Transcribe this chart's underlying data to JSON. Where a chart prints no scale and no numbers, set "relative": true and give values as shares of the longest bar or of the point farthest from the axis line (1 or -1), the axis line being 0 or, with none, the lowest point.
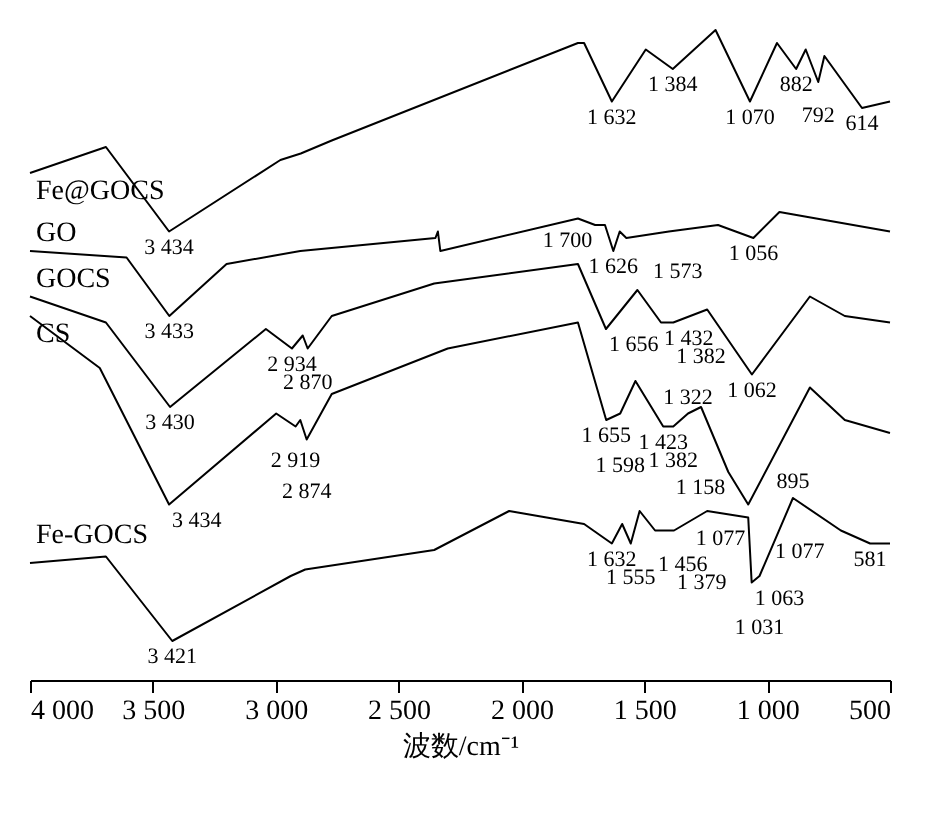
{
  "chart_data": {
    "type": "line",
    "relative": true,
    "xlabel": "波数/cm⁻¹",
    "xlim": [
      4000,
      500
    ],
    "xticks": [
      {
        "value": 4000,
        "label": "4 000"
      },
      {
        "value": 3500,
        "label": "3 500"
      },
      {
        "value": 3000,
        "label": "3 000"
      },
      {
        "value": 2500,
        "label": "2 500"
      },
      {
        "value": 2000,
        "label": "2 000"
      },
      {
        "value": 1500,
        "label": "1 500"
      },
      {
        "value": 1000,
        "label": "1 000"
      },
      {
        "value": 500,
        "label": "500"
      }
    ],
    "legend": false,
    "grid": false,
    "marker": "none",
    "line_style": "solid",
    "series": [
      {
        "name": "Fe@GOCS",
        "color": "#000000",
        "x": [
          4000,
          3691,
          3434,
          2981,
          2898,
          2772,
          1770,
          1745,
          1632,
          1494,
          1384,
          1210,
          1070,
          960,
          882,
          843,
          792,
          767,
          614,
          500
        ],
        "values": [
          0.78,
          0.82,
          0.69,
          0.8,
          0.81,
          0.83,
          0.98,
          0.98,
          0.89,
          0.97,
          0.94,
          1.0,
          0.89,
          0.98,
          0.94,
          0.97,
          0.92,
          0.96,
          0.88,
          0.89
        ]
      },
      {
        "name": "GO",
        "color": "#000000",
        "x": [
          4000,
          3607,
          3433,
          3200,
          2900,
          2350,
          2340,
          2330,
          1770,
          1700,
          1660,
          1626,
          1600,
          1573,
          1400,
          1200,
          1056,
          950,
          800,
          500
        ],
        "values": [
          0.66,
          0.65,
          0.56,
          0.64,
          0.66,
          0.68,
          0.69,
          0.66,
          0.71,
          0.7,
          0.7,
          0.66,
          0.69,
          0.68,
          0.69,
          0.7,
          0.68,
          0.72,
          0.71,
          0.69
        ]
      },
      {
        "name": "GOCS",
        "color": "#000000",
        "x": [
          4000,
          3691,
          3430,
          3040,
          2934,
          2890,
          2870,
          2772,
          2355,
          1770,
          1656,
          1528,
          1432,
          1382,
          1244,
          1062,
          826,
          684,
          500
        ],
        "values": [
          0.59,
          0.55,
          0.42,
          0.54,
          0.51,
          0.53,
          0.51,
          0.56,
          0.61,
          0.64,
          0.54,
          0.6,
          0.55,
          0.55,
          0.57,
          0.47,
          0.59,
          0.56,
          0.55
        ]
      },
      {
        "name": "CS",
        "color": "#000000",
        "x": [
          4000,
          3716,
          3434,
          2998,
          2919,
          2900,
          2874,
          2772,
          2300,
          1770,
          1655,
          1598,
          1536,
          1423,
          1382,
          1322,
          1269,
          1158,
          1077,
          826,
          684,
          500
        ],
        "values": [
          0.56,
          0.48,
          0.27,
          0.41,
          0.39,
          0.4,
          0.37,
          0.44,
          0.51,
          0.55,
          0.4,
          0.41,
          0.46,
          0.39,
          0.39,
          0.41,
          0.42,
          0.32,
          0.27,
          0.45,
          0.4,
          0.38
        ]
      },
      {
        "name": "Fe-GOCS",
        "color": "#000000",
        "x": [
          4000,
          3691,
          3421,
          2939,
          2880,
          2355,
          2050,
          1745,
          1632,
          1590,
          1555,
          1519,
          1456,
          1379,
          1244,
          1077,
          1063,
          1031,
          895,
          700,
          581,
          500
        ],
        "values": [
          0.18,
          0.19,
          0.06,
          0.16,
          0.17,
          0.2,
          0.26,
          0.24,
          0.21,
          0.24,
          0.21,
          0.26,
          0.23,
          0.23,
          0.26,
          0.25,
          0.15,
          0.16,
          0.28,
          0.23,
          0.21,
          0.21
        ]
      }
    ],
    "annotations": [
      {
        "text": "3 434",
        "x": 3434,
        "y": 0.69
      },
      {
        "text": "1 632",
        "x": 1632,
        "y": 0.89
      },
      {
        "text": "1 384",
        "x": 1384,
        "y": 0.94
      },
      {
        "text": "882",
        "x": 882,
        "y": 0.94
      },
      {
        "text": "1 070",
        "x": 1070,
        "y": 0.89
      },
      {
        "text": "792",
        "x": 792,
        "y": 0.92
      },
      {
        "text": "614",
        "x": 614,
        "y": 0.88
      },
      {
        "text": "3 433",
        "x": 3433,
        "y": 0.56
      },
      {
        "text": "1 700",
        "x": 1700,
        "y": 0.7
      },
      {
        "text": "1 626",
        "x": 1626,
        "y": 0.66
      },
      {
        "text": "1 573",
        "x": 1573,
        "y": 0.68
      },
      {
        "text": "1 056",
        "x": 1056,
        "y": 0.68
      },
      {
        "text": "3 430",
        "x": 3430,
        "y": 0.42
      },
      {
        "text": "2 934",
        "x": 2934,
        "y": 0.51
      },
      {
        "text": "2 870",
        "x": 2870,
        "y": 0.51
      },
      {
        "text": "1 656",
        "x": 1656,
        "y": 0.54
      },
      {
        "text": "1 432",
        "x": 1432,
        "y": 0.55
      },
      {
        "text": "1 382",
        "x": 1382,
        "y": 0.55
      },
      {
        "text": "1 062",
        "x": 1062,
        "y": 0.47
      },
      {
        "text": "3 434",
        "x": 3434,
        "y": 0.27
      },
      {
        "text": "2 919",
        "x": 2919,
        "y": 0.39
      },
      {
        "text": "2 874",
        "x": 2874,
        "y": 0.37
      },
      {
        "text": "1 655",
        "x": 1655,
        "y": 0.4
      },
      {
        "text": "1 598",
        "x": 1598,
        "y": 0.41
      },
      {
        "text": "1 423",
        "x": 1423,
        "y": 0.39
      },
      {
        "text": "1 382",
        "x": 1382,
        "y": 0.39
      },
      {
        "text": "1 322",
        "x": 1322,
        "y": 0.41
      },
      {
        "text": "1 158",
        "x": 1158,
        "y": 0.32
      },
      {
        "text": "1 077",
        "x": 1077,
        "y": 0.27
      },
      {
        "text": "3 421",
        "x": 3421,
        "y": 0.06
      },
      {
        "text": "1 632",
        "x": 1632,
        "y": 0.21
      },
      {
        "text": "1 555",
        "x": 1555,
        "y": 0.21
      },
      {
        "text": "1 456",
        "x": 1456,
        "y": 0.23
      },
      {
        "text": "1 379",
        "x": 1379,
        "y": 0.23
      },
      {
        "text": "1 077",
        "x": 1077,
        "y": 0.25
      },
      {
        "text": "895",
        "x": 895,
        "y": 0.28
      },
      {
        "text": "1 063",
        "x": 1063,
        "y": 0.15
      },
      {
        "text": "1 031",
        "x": 1031,
        "y": 0.16
      },
      {
        "text": "581",
        "x": 581,
        "y": 0.21
      }
    ]
  }
}
